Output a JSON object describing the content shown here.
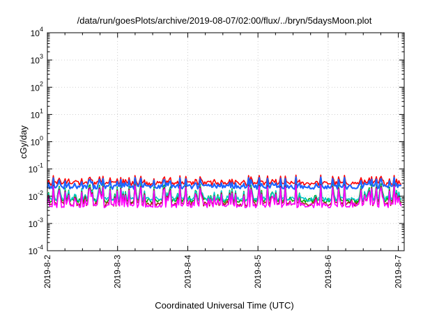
{
  "chart_data": {
    "type": "line",
    "title": "/data/run/goesPlots/archive/2019-08-07/02:00/flux/../bryn/5daysMoon.plot",
    "xlabel": "Coordinated Universal Time (UTC)",
    "ylabel": "cGy/day",
    "yscale": "log",
    "ylim": [
      0.0001,
      10000
    ],
    "y_ticks": [
      {
        "base": "10",
        "exp": "-4",
        "value": 0.0001
      },
      {
        "base": "10",
        "exp": "-3",
        "value": 0.001
      },
      {
        "base": "10",
        "exp": "-2",
        "value": 0.01
      },
      {
        "base": "10",
        "exp": "-1",
        "value": 0.1
      },
      {
        "base": "10",
        "exp": "0",
        "value": 1
      },
      {
        "base": "10",
        "exp": "1",
        "value": 10
      },
      {
        "base": "10",
        "exp": "2",
        "value": 100
      },
      {
        "base": "10",
        "exp": "3",
        "value": 1000
      },
      {
        "base": "10",
        "exp": "4",
        "value": 10000
      }
    ],
    "xlim": [
      "2019-08-02 00:00",
      "2019-08-07 02:00"
    ],
    "x_ticks": [
      "2019-8-2",
      "2019-8-3",
      "2019-8-4",
      "2019-8-5",
      "2019-8-6",
      "2019-8-7"
    ],
    "grid": true,
    "legend": "none",
    "series_colors": [
      "#ff0000",
      "#00aa00",
      "#00c8c8",
      "#1e64ff",
      "#aa1e1e",
      "#ff00ff"
    ],
    "series_style": [
      {
        "color": "#ff0000",
        "base": 0.03,
        "spike": 0.06
      },
      {
        "color": "#00aa00",
        "base": 0.007,
        "spike": 0.035
      },
      {
        "color": "#00c8c8",
        "base": 0.008,
        "spike": 0.03
      },
      {
        "color": "#1e64ff",
        "base": 0.022,
        "spike": 0.05
      },
      {
        "color": "#aa1e1e",
        "base": 0.0052,
        "spike": 0.028
      },
      {
        "color": "#ff00ff",
        "base": 0.0046,
        "spike": 0.025
      }
    ]
  }
}
